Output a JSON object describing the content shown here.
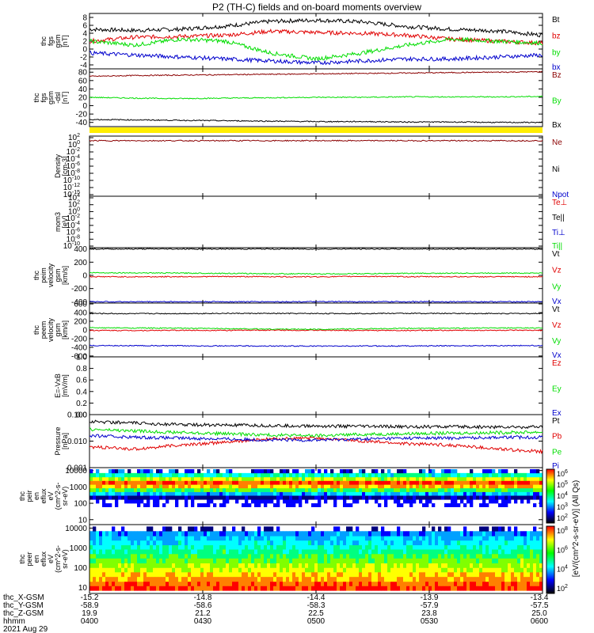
{
  "title": "P2 (TH-C) fields and on-board moments overview",
  "colors": {
    "black": "#000000",
    "red": "#e00000",
    "green": "#00dd00",
    "blue": "#0000cc",
    "darkred": "#8b0000",
    "yellow": "#ffee00"
  },
  "chart_data": [
    {
      "id": "fgs",
      "type": "line",
      "ylabel": [
        "thc",
        "fgs",
        "gsm",
        "[nT]"
      ],
      "ylim": [
        -5,
        9
      ],
      "yticks": [
        8,
        6,
        4,
        2,
        0,
        -2,
        -4
      ],
      "series": [
        {
          "name": "Bt",
          "color": "black",
          "values": [
            5,
            4.7,
            5,
            5.8,
            7,
            7.3,
            6.9,
            5.7,
            5,
            4.6,
            3.5
          ]
        },
        {
          "name": "bz",
          "color": "red",
          "values": [
            2,
            3,
            3.2,
            3.5,
            4.5,
            4.2,
            4,
            3.5,
            2.5,
            2,
            1.5
          ]
        },
        {
          "name": "by",
          "color": "green",
          "values": [
            2,
            1,
            2.5,
            2,
            -1,
            -2.5,
            -1,
            1,
            2.5,
            2,
            1.5
          ]
        },
        {
          "name": "bx",
          "color": "blue",
          "values": [
            -1,
            -1.5,
            -2,
            -2.5,
            -3,
            -3.5,
            -3,
            -2.5,
            -2.5,
            -2,
            -1.5
          ]
        }
      ]
    },
    {
      "id": "fgsdsl",
      "type": "line",
      "ylabel": [
        "thc",
        "fgs",
        "gsm",
        "-dsl",
        "[nT]"
      ],
      "ylim": [
        -50,
        88
      ],
      "yticks": [
        80,
        60,
        40,
        20,
        0,
        -20,
        -40
      ],
      "series": [
        {
          "name": "Bz",
          "color": "darkred",
          "values": [
            70,
            72,
            73,
            74,
            75,
            76,
            77,
            78,
            79,
            80,
            81
          ]
        },
        {
          "name": "By",
          "color": "green",
          "values": [
            20,
            18,
            17,
            18,
            19,
            20,
            20,
            21,
            21,
            21,
            22
          ]
        },
        {
          "name": "Bx",
          "color": "black",
          "values": [
            -33,
            -34,
            -35,
            -36,
            -37,
            -38,
            -38,
            -39,
            -39,
            -40,
            -40
          ]
        }
      ]
    },
    {
      "id": "density",
      "type": "line",
      "ylabel": [
        "Density",
        "[cm-3]"
      ],
      "ylim": [
        -15,
        2
      ],
      "yticks": [
        "10^2",
        "10^0",
        "10^-2",
        "10^-4",
        "10^-6",
        "10^-8",
        "10^-10",
        "10^-12",
        "10^-15"
      ],
      "series": [
        {
          "name": "Ne",
          "color": "darkred",
          "values": [
            0.7,
            0.7,
            0.7,
            0.7,
            0.7,
            0.7,
            0.7,
            0.7,
            0.7,
            0.7,
            0.7
          ]
        },
        {
          "name": "Ni",
          "color": "black",
          "values": []
        },
        {
          "name": "Npot",
          "color": "blue",
          "values": []
        }
      ]
    },
    {
      "id": "temp",
      "type": "line",
      "ylabel": [
        "mom3",
        "[eV]"
      ],
      "ylim": [
        -12,
        4
      ],
      "yticks": [
        "10^4",
        "10^2",
        "10^0",
        "10^-2",
        "10^-4",
        "10^-6",
        "10^-8",
        "10^-10"
      ],
      "series": [
        {
          "name": "Te⊥",
          "color": "red",
          "values": []
        },
        {
          "name": "Te||",
          "color": "black",
          "values": []
        },
        {
          "name": "Ti⊥",
          "color": "blue",
          "values": []
        },
        {
          "name": "Ti||",
          "color": "green",
          "values": []
        }
      ]
    },
    {
      "id": "peim",
      "type": "line",
      "ylabel": [
        "thc",
        "peim",
        "velocity",
        "gsm",
        "[km/s]"
      ],
      "ylim": [
        -420,
        420
      ],
      "yticks": [
        400,
        200,
        0,
        -200,
        -400
      ],
      "series": [
        {
          "name": "Vt",
          "color": "black",
          "values": [
            400,
            400,
            400,
            400,
            400,
            400,
            400,
            400,
            400,
            400,
            400
          ]
        },
        {
          "name": "Vz",
          "color": "red",
          "values": [
            -20,
            -22,
            -20,
            -18,
            -20,
            -22,
            -15,
            -20,
            -20,
            -22,
            -20
          ]
        },
        {
          "name": "Vy",
          "color": "green",
          "values": [
            40,
            38,
            35,
            30,
            25,
            22,
            25,
            30,
            32,
            35,
            35
          ]
        },
        {
          "name": "Vx",
          "color": "blue",
          "values": [
            -400,
            -400,
            -400,
            -400,
            -400,
            -400,
            -400,
            -400,
            -400,
            -400,
            -400
          ]
        }
      ]
    },
    {
      "id": "peem",
      "type": "line",
      "ylabel": [
        "thc",
        "peem",
        "velocity",
        "gsm",
        "[km/s]"
      ],
      "ylim": [
        -620,
        620
      ],
      "yticks": [
        600,
        400,
        200,
        0,
        -200,
        -400,
        -600
      ],
      "series": [
        {
          "name": "Vt",
          "color": "black",
          "values": [
            380,
            375,
            378,
            382,
            380,
            378,
            380,
            382,
            380,
            378,
            380
          ]
        },
        {
          "name": "Vz",
          "color": "red",
          "values": [
            -10,
            -12,
            -8,
            -10,
            -5,
            -8,
            -10,
            -12,
            -10,
            -8,
            -10
          ]
        },
        {
          "name": "Vy",
          "color": "green",
          "values": [
            50,
            45,
            40,
            30,
            20,
            15,
            25,
            35,
            40,
            45,
            45
          ]
        },
        {
          "name": "Vx",
          "color": "blue",
          "values": [
            -360,
            -362,
            -365,
            -368,
            -370,
            -372,
            -370,
            -368,
            -365,
            -362,
            -360
          ]
        }
      ]
    },
    {
      "id": "efield",
      "type": "line",
      "ylabel": [
        "E=-VxB",
        "[mV/m]"
      ],
      "ylim": [
        0,
        1
      ],
      "yticks": [
        1.0,
        0.8,
        0.6,
        0.4,
        0.2,
        0.0
      ],
      "series": [
        {
          "name": "Ez",
          "color": "red",
          "values": []
        },
        {
          "name": "Ey",
          "color": "green",
          "values": []
        },
        {
          "name": "Ex",
          "color": "blue",
          "values": []
        }
      ]
    },
    {
      "id": "pressure",
      "type": "line",
      "log": true,
      "ylabel": [
        "Pressure",
        "[nPa]"
      ],
      "ylim": [
        0.001,
        0.1
      ],
      "yticks": [
        "0.100",
        "0.010",
        "0.001"
      ],
      "series": [
        {
          "name": "Pt",
          "color": "black",
          "values": [
            0.055,
            0.048,
            0.042,
            0.04,
            0.038,
            0.037,
            0.036,
            0.035,
            0.035,
            0.034,
            0.034
          ]
        },
        {
          "name": "Pb",
          "color": "red",
          "values": [
            0.006,
            0.005,
            0.007,
            0.009,
            0.012,
            0.013,
            0.01,
            0.008,
            0.007,
            0.005,
            0.004
          ]
        },
        {
          "name": "Pe",
          "color": "green",
          "values": [
            0.028,
            0.024,
            0.021,
            0.019,
            0.017,
            0.016,
            0.018,
            0.019,
            0.02,
            0.021,
            0.022
          ]
        },
        {
          "name": "Pi",
          "color": "blue",
          "values": [
            0.016,
            0.014,
            0.013,
            0.012,
            0.011,
            0.011,
            0.012,
            0.013,
            0.013,
            0.014,
            0.014
          ]
        }
      ]
    },
    {
      "id": "peir",
      "type": "heatmap",
      "ylabel": [
        "thc",
        "peir",
        "en",
        "eflux",
        "eV",
        "(cm^2-s-",
        "sr-eV)"
      ],
      "ylim": [
        5,
        15000
      ],
      "yticks": [
        "10000",
        "1000",
        "100",
        "10"
      ]
    },
    {
      "id": "peer",
      "type": "heatmap",
      "ylabel": [
        "thc",
        "peer",
        "en",
        "eflux",
        "eV",
        "(cm^2-s-",
        "sr-eV)"
      ],
      "ylim": [
        5,
        15000
      ],
      "yticks": [
        "10000",
        "1000",
        "100",
        "10"
      ]
    }
  ],
  "colorbar": {
    "label": "[eV/(cm^2-s-sr-eV)] (All Qs)",
    "upper_ticks": [
      "10^6",
      "10^5",
      "10^4",
      "10^3",
      "10^2"
    ],
    "lower_ticks": [
      "10^8",
      "10^6",
      "10^4",
      "10^2"
    ]
  },
  "xaxis": {
    "row_labels": [
      "thc_X-GSM",
      "thc_Y-GSM",
      "thc_Z-GSM",
      "hhmm",
      "2021 Aug 29"
    ],
    "ticks": [
      {
        "x": "-15.2",
        "y": "-58.9",
        "z": "19.9",
        "time": "0400"
      },
      {
        "x": "-14.8",
        "y": "-58.6",
        "z": "21.2",
        "time": "0430"
      },
      {
        "x": "-14.4",
        "y": "-58.3",
        "z": "22.5",
        "time": "0500"
      },
      {
        "x": "-13.9",
        "y": "-57.9",
        "z": "23.8",
        "time": "0530"
      },
      {
        "x": "-13.4",
        "y": "-57.5",
        "z": "25.0",
        "time": "0600"
      }
    ]
  }
}
